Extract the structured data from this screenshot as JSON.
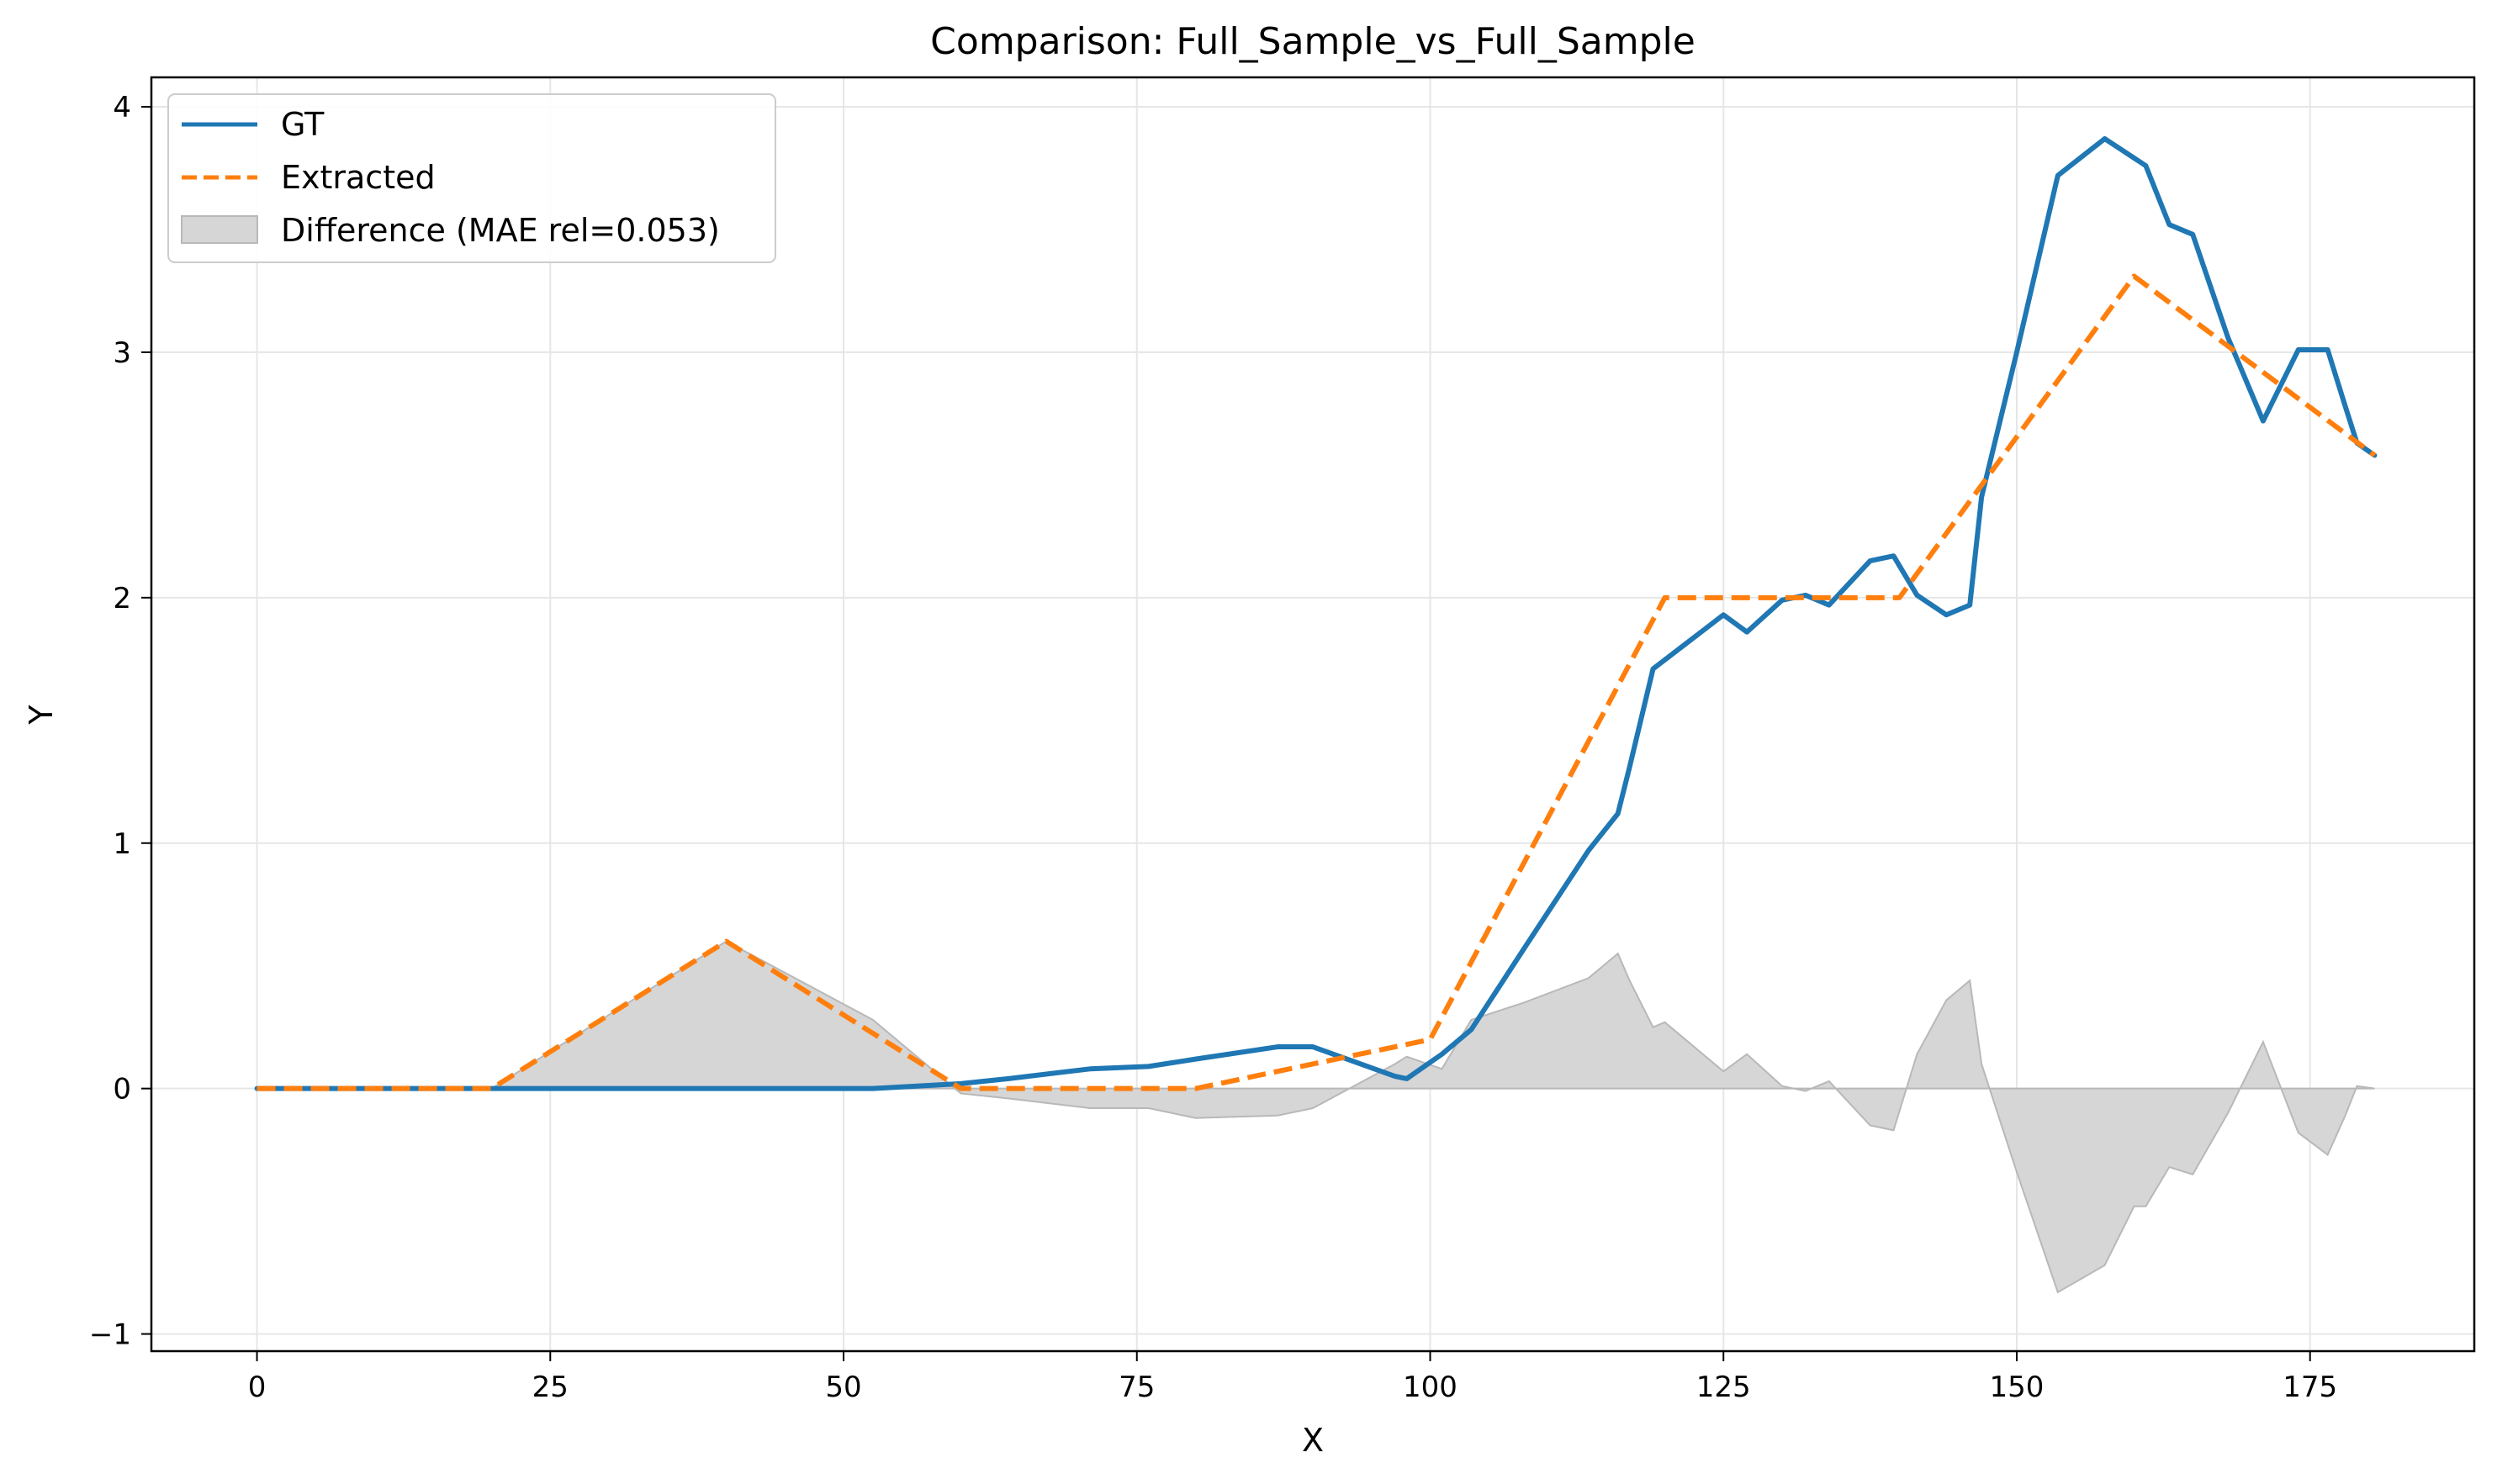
{
  "colors": {
    "gt": "#1f77b4",
    "extracted": "#ff7f0e",
    "difference_fill": "#d6d6d6",
    "difference_edge": "#b8b8b8",
    "grid": "#e6e6e6"
  },
  "chart_data": {
    "type": "line",
    "title": "Comparison: Full_Sample_vs_Full_Sample",
    "xlabel": "X",
    "ylabel": "Y",
    "xlim": [
      -9,
      189
    ],
    "ylim": [
      -1.07,
      4.12
    ],
    "xticks": [
      0,
      25,
      50,
      75,
      100,
      125,
      150,
      175
    ],
    "yticks": [
      -1,
      0,
      1,
      2,
      3,
      4
    ],
    "xtick_labels": [
      "0",
      "25",
      "50",
      "75",
      "100",
      "125",
      "150",
      "175"
    ],
    "ytick_labels": [
      "−1",
      "0",
      "1",
      "2",
      "3",
      "4"
    ],
    "grid": true,
    "legend_position": "top-left",
    "series": [
      {
        "name": "GT",
        "style": "solid",
        "x": [
          0,
          20,
          40,
          52.5,
          60,
          64,
          71,
          76,
          80,
          87,
          90,
          97,
          98,
          101,
          103.5,
          108,
          113.5,
          116,
          117,
          119,
          125,
          127,
          130,
          132,
          134,
          137.5,
          139.5,
          141.5,
          144,
          146,
          147,
          150,
          153.5,
          157.5,
          161,
          163,
          165,
          168,
          171,
          174,
          176.5,
          178,
          179,
          180.5
        ],
        "y": [
          0,
          0,
          0,
          0,
          0.02,
          0.04,
          0.08,
          0.09,
          0.12,
          0.17,
          0.17,
          0.05,
          0.04,
          0.14,
          0.24,
          0.57,
          0.97,
          1.12,
          1.31,
          1.71,
          1.93,
          1.86,
          1.99,
          2.01,
          1.97,
          2.15,
          2.17,
          2.01,
          1.93,
          1.97,
          2.41,
          3.0,
          3.72,
          3.87,
          3.76,
          3.52,
          3.48,
          3.06,
          2.72,
          3.01,
          3.01,
          2.78,
          2.63,
          2.58
        ]
      },
      {
        "name": "Extracted",
        "style": "dashed",
        "x": [
          0,
          20,
          40,
          60,
          80,
          100,
          120,
          140,
          160,
          180.5
        ],
        "y": [
          0,
          0,
          0.6,
          0,
          0,
          0.2,
          2.0,
          2.0,
          3.31,
          2.58
        ]
      }
    ],
    "difference": {
      "name": "Difference (MAE rel=0.053)",
      "x": [
        0,
        20,
        40,
        52.5,
        60,
        64,
        71,
        76,
        80,
        87,
        90,
        97,
        98,
        101,
        103.5,
        108,
        113.5,
        116,
        117,
        119,
        120,
        125,
        127,
        130,
        132,
        134,
        137.5,
        139.5,
        141.5,
        144,
        146,
        147,
        150,
        153.5,
        157.5,
        160,
        161,
        163,
        165,
        168,
        171,
        174,
        176.5,
        178,
        179,
        180.5
      ],
      "y": [
        0,
        0,
        0.6,
        0.28,
        -0.02,
        -0.04,
        -0.08,
        -0.08,
        -0.12,
        -0.11,
        -0.08,
        0.1,
        0.13,
        0.08,
        0.28,
        0.35,
        0.45,
        0.55,
        0.44,
        0.25,
        0.27,
        0.07,
        0.14,
        0.01,
        -0.01,
        0.03,
        -0.15,
        -0.17,
        0.14,
        0.36,
        0.44,
        0.1,
        -0.34,
        -0.83,
        -0.72,
        -0.48,
        -0.48,
        -0.32,
        -0.35,
        -0.1,
        0.19,
        -0.18,
        -0.27,
        -0.11,
        0.01,
        0.0
      ]
    }
  }
}
